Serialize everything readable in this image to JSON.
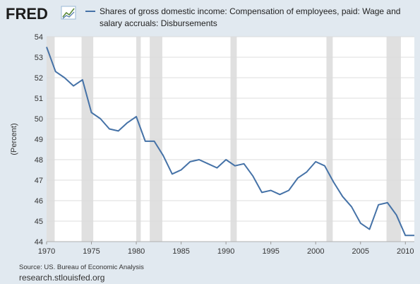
{
  "logo": {
    "text": "FRED"
  },
  "footer": {
    "source": "Source: US. Bureau of Economic Analysis",
    "url": "research.stlouisfed.org"
  },
  "colors": {
    "background": "#e1e9f0",
    "plot_background": "#ffffff",
    "line": "#4572a7",
    "recession": "#e0e0e0",
    "grid": "#dcdcdc"
  },
  "chart_data": {
    "type": "line",
    "legend": {
      "line1": "Shares of gross domestic income: Compensation of employees, paid: Wage and",
      "line2": "salary accruals: Disbursements"
    },
    "ylabel": "(Percent)",
    "xlim": [
      1970,
      2011
    ],
    "ylim": [
      44,
      54
    ],
    "x_ticks": [
      "1970",
      "1975",
      "1980",
      "1985",
      "1990",
      "1995",
      "2000",
      "2005",
      "2010"
    ],
    "y_ticks": [
      "44",
      "45",
      "46",
      "47",
      "48",
      "49",
      "50",
      "51",
      "52",
      "53",
      "54"
    ],
    "grid": true,
    "recessions": [
      [
        1969.9,
        1970.9
      ],
      [
        1973.9,
        1975.2
      ],
      [
        1980.0,
        1980.5
      ],
      [
        1981.5,
        1982.9
      ],
      [
        1990.5,
        1991.2
      ],
      [
        2001.2,
        2001.9
      ],
      [
        2007.9,
        2009.5
      ]
    ],
    "series": [
      {
        "x": [
          1970,
          1971,
          1972,
          1973,
          1974,
          1975,
          1976,
          1977,
          1978,
          1979,
          1980,
          1981,
          1982,
          1983,
          1984,
          1985,
          1986,
          1987,
          1988,
          1989,
          1990,
          1991,
          1992,
          1993,
          1994,
          1995,
          1996,
          1997,
          1998,
          1999,
          2000,
          2001,
          2002,
          2003,
          2004,
          2005,
          2006,
          2007,
          2008,
          2009,
          2010,
          2011
        ],
        "values": [
          53.5,
          52.3,
          52.0,
          51.6,
          51.9,
          50.3,
          50.0,
          49.5,
          49.4,
          49.8,
          50.1,
          48.9,
          48.9,
          48.2,
          47.3,
          47.5,
          47.9,
          48.0,
          47.8,
          47.6,
          48.0,
          47.7,
          47.8,
          47.2,
          46.4,
          46.5,
          46.3,
          46.5,
          47.1,
          47.4,
          47.9,
          47.7,
          46.9,
          46.2,
          45.7,
          44.9,
          44.6,
          45.8,
          45.9,
          45.3,
          44.3,
          44.3
        ]
      }
    ]
  }
}
